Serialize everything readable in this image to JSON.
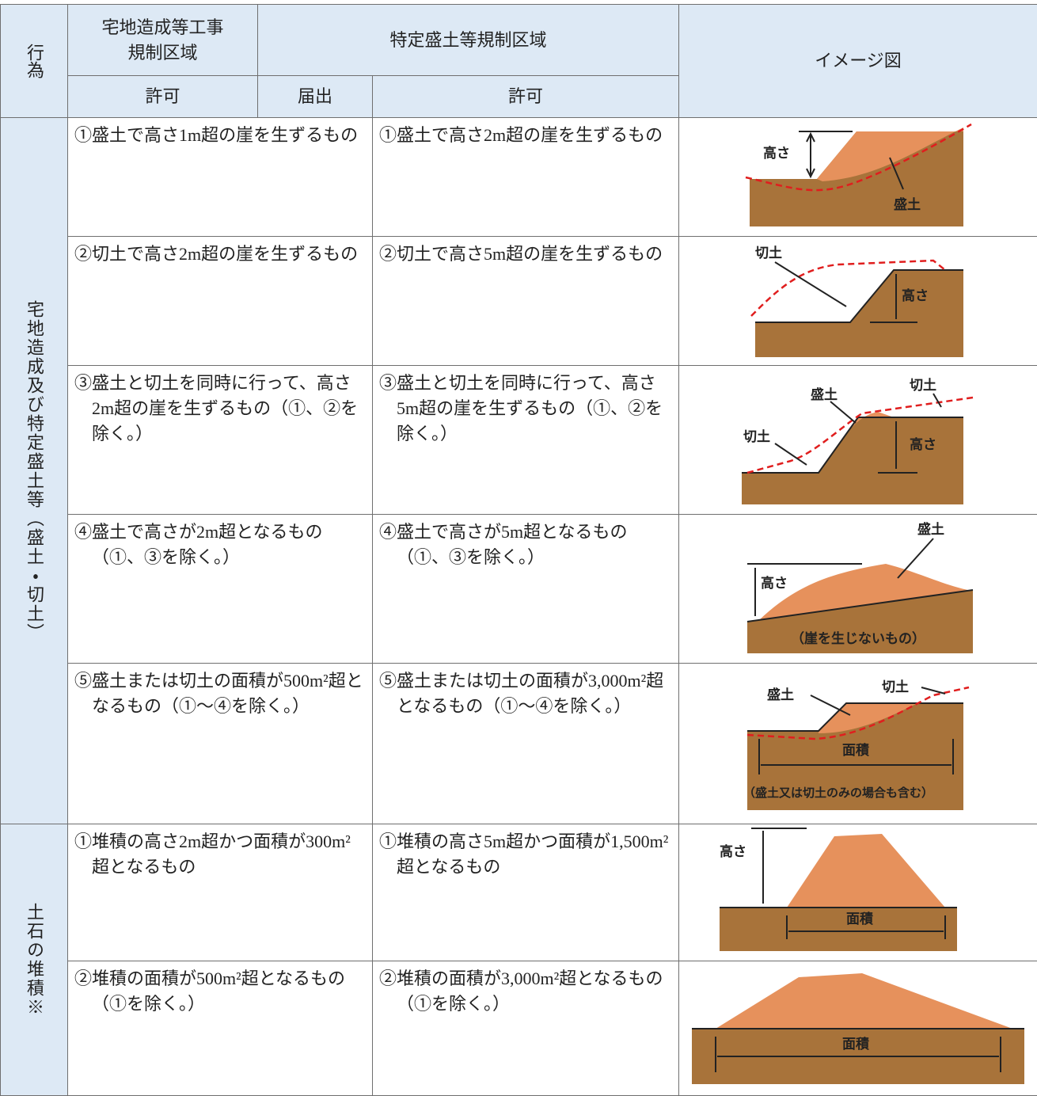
{
  "header": {
    "action": "行為",
    "zone1": "宅地造成等工事\n規制区域",
    "zone2": "特定盛土等規制区域",
    "permit1": "許可",
    "notify": "届出",
    "permit2": "許可",
    "image": "イメージ図"
  },
  "groups": [
    {
      "label": "宅地造成及び特定盛土等（盛土・切土）",
      "rows": [
        {
          "col1": "①盛土で高さ1m超の崖を生ずるもの",
          "col2": "①盛土で高さ2m超の崖を生ずるもの",
          "image_labels": [
            "高さ",
            "盛土"
          ]
        },
        {
          "col1": "②切土で高さ2m超の崖を生ずるもの",
          "col2": "②切土で高さ5m超の崖を生ずるもの",
          "image_labels": [
            "切土",
            "高さ"
          ]
        },
        {
          "col1": "③盛土と切土を同時に行って、高さ2m超の崖を生ずるもの（①、②を除く。）",
          "col2": "③盛土と切土を同時に行って、高さ5m超の崖を生ずるもの（①、②を除く。）",
          "image_labels": [
            "盛土",
            "切土",
            "切土",
            "高さ"
          ]
        },
        {
          "col1": "④盛土で高さが2m超となるもの（①、③を除く。）",
          "col2": "④盛土で高さが5m超となるもの（①、③を除く。）",
          "image_labels": [
            "盛土",
            "高さ",
            "（崖を生じないもの）"
          ]
        },
        {
          "col1": "⑤盛土または切土の面積が500m²超となるもの（①～④を除く。）",
          "col2": "⑤盛土または切土の面積が3,000m²超となるもの（①～④を除く。）",
          "image_labels": [
            "盛土",
            "切土",
            "面積",
            "（盛土又は切土のみの場合も含む）"
          ]
        }
      ]
    },
    {
      "label": "土石の堆積※",
      "rows": [
        {
          "col1": "①堆積の高さ2m超かつ面積が300m²超となるもの",
          "col2": "①堆積の高さ5m超かつ面積が1,500m²超となるもの",
          "image_labels": [
            "高さ",
            "面積"
          ]
        },
        {
          "col1": "②堆積の面積が500m²超となるもの（①を除く。）",
          "col2": "②堆積の面積が3,000m²超となるもの（①を除く。）",
          "image_labels": [
            "面積"
          ]
        }
      ]
    }
  ]
}
